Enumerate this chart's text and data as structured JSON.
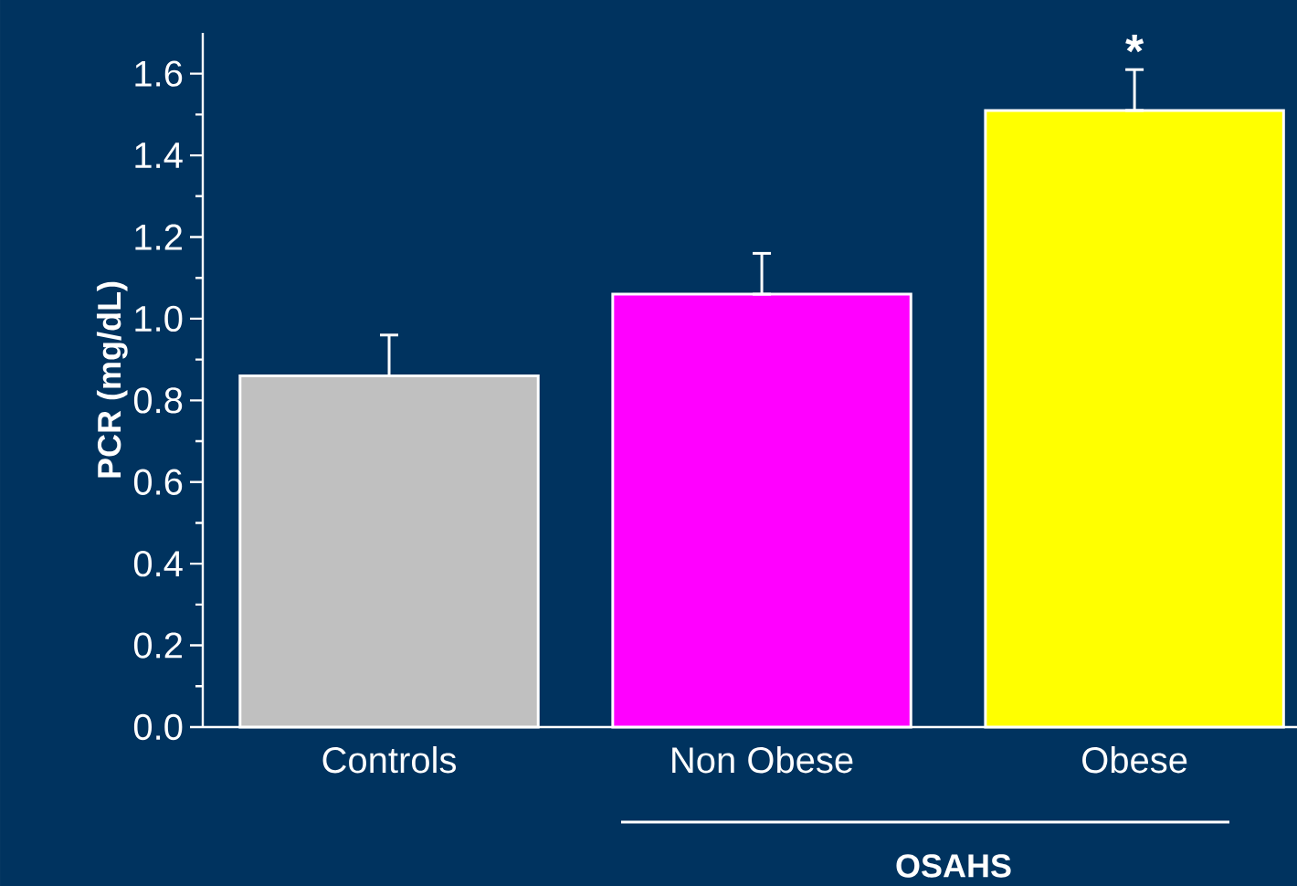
{
  "chart_data": {
    "type": "bar",
    "ylabel": "PCR (mg/dL)",
    "categories": [
      "Controls",
      "Non Obese",
      "Obese"
    ],
    "values": [
      0.86,
      1.06,
      1.51
    ],
    "colors": [
      "#c0c0c0",
      "#ff00ff",
      "#ffff00"
    ],
    "errors": [
      [
        0.86,
        0.96
      ],
      [
        1.06,
        1.16
      ],
      [
        1.51,
        1.61
      ]
    ],
    "ylim": [
      0,
      1.7
    ],
    "yticks": [
      {
        "value": 0,
        "label": "0.0"
      },
      {
        "value": 0.2,
        "label": "0.2"
      },
      {
        "value": 0.4,
        "label": "0.4"
      },
      {
        "value": 0.6,
        "label": "0.6"
      },
      {
        "value": 0.8,
        "label": "0.8"
      },
      {
        "value": 1.0,
        "label": "1.0"
      },
      {
        "value": 1.2,
        "label": "1.2"
      },
      {
        "value": 1.4,
        "label": "1.4"
      },
      {
        "value": 1.6,
        "label": "1.6"
      }
    ],
    "annotations": [
      {
        "text": "*",
        "x": "Obese",
        "y": 1.61
      },
      "OSAHS"
    ]
  }
}
